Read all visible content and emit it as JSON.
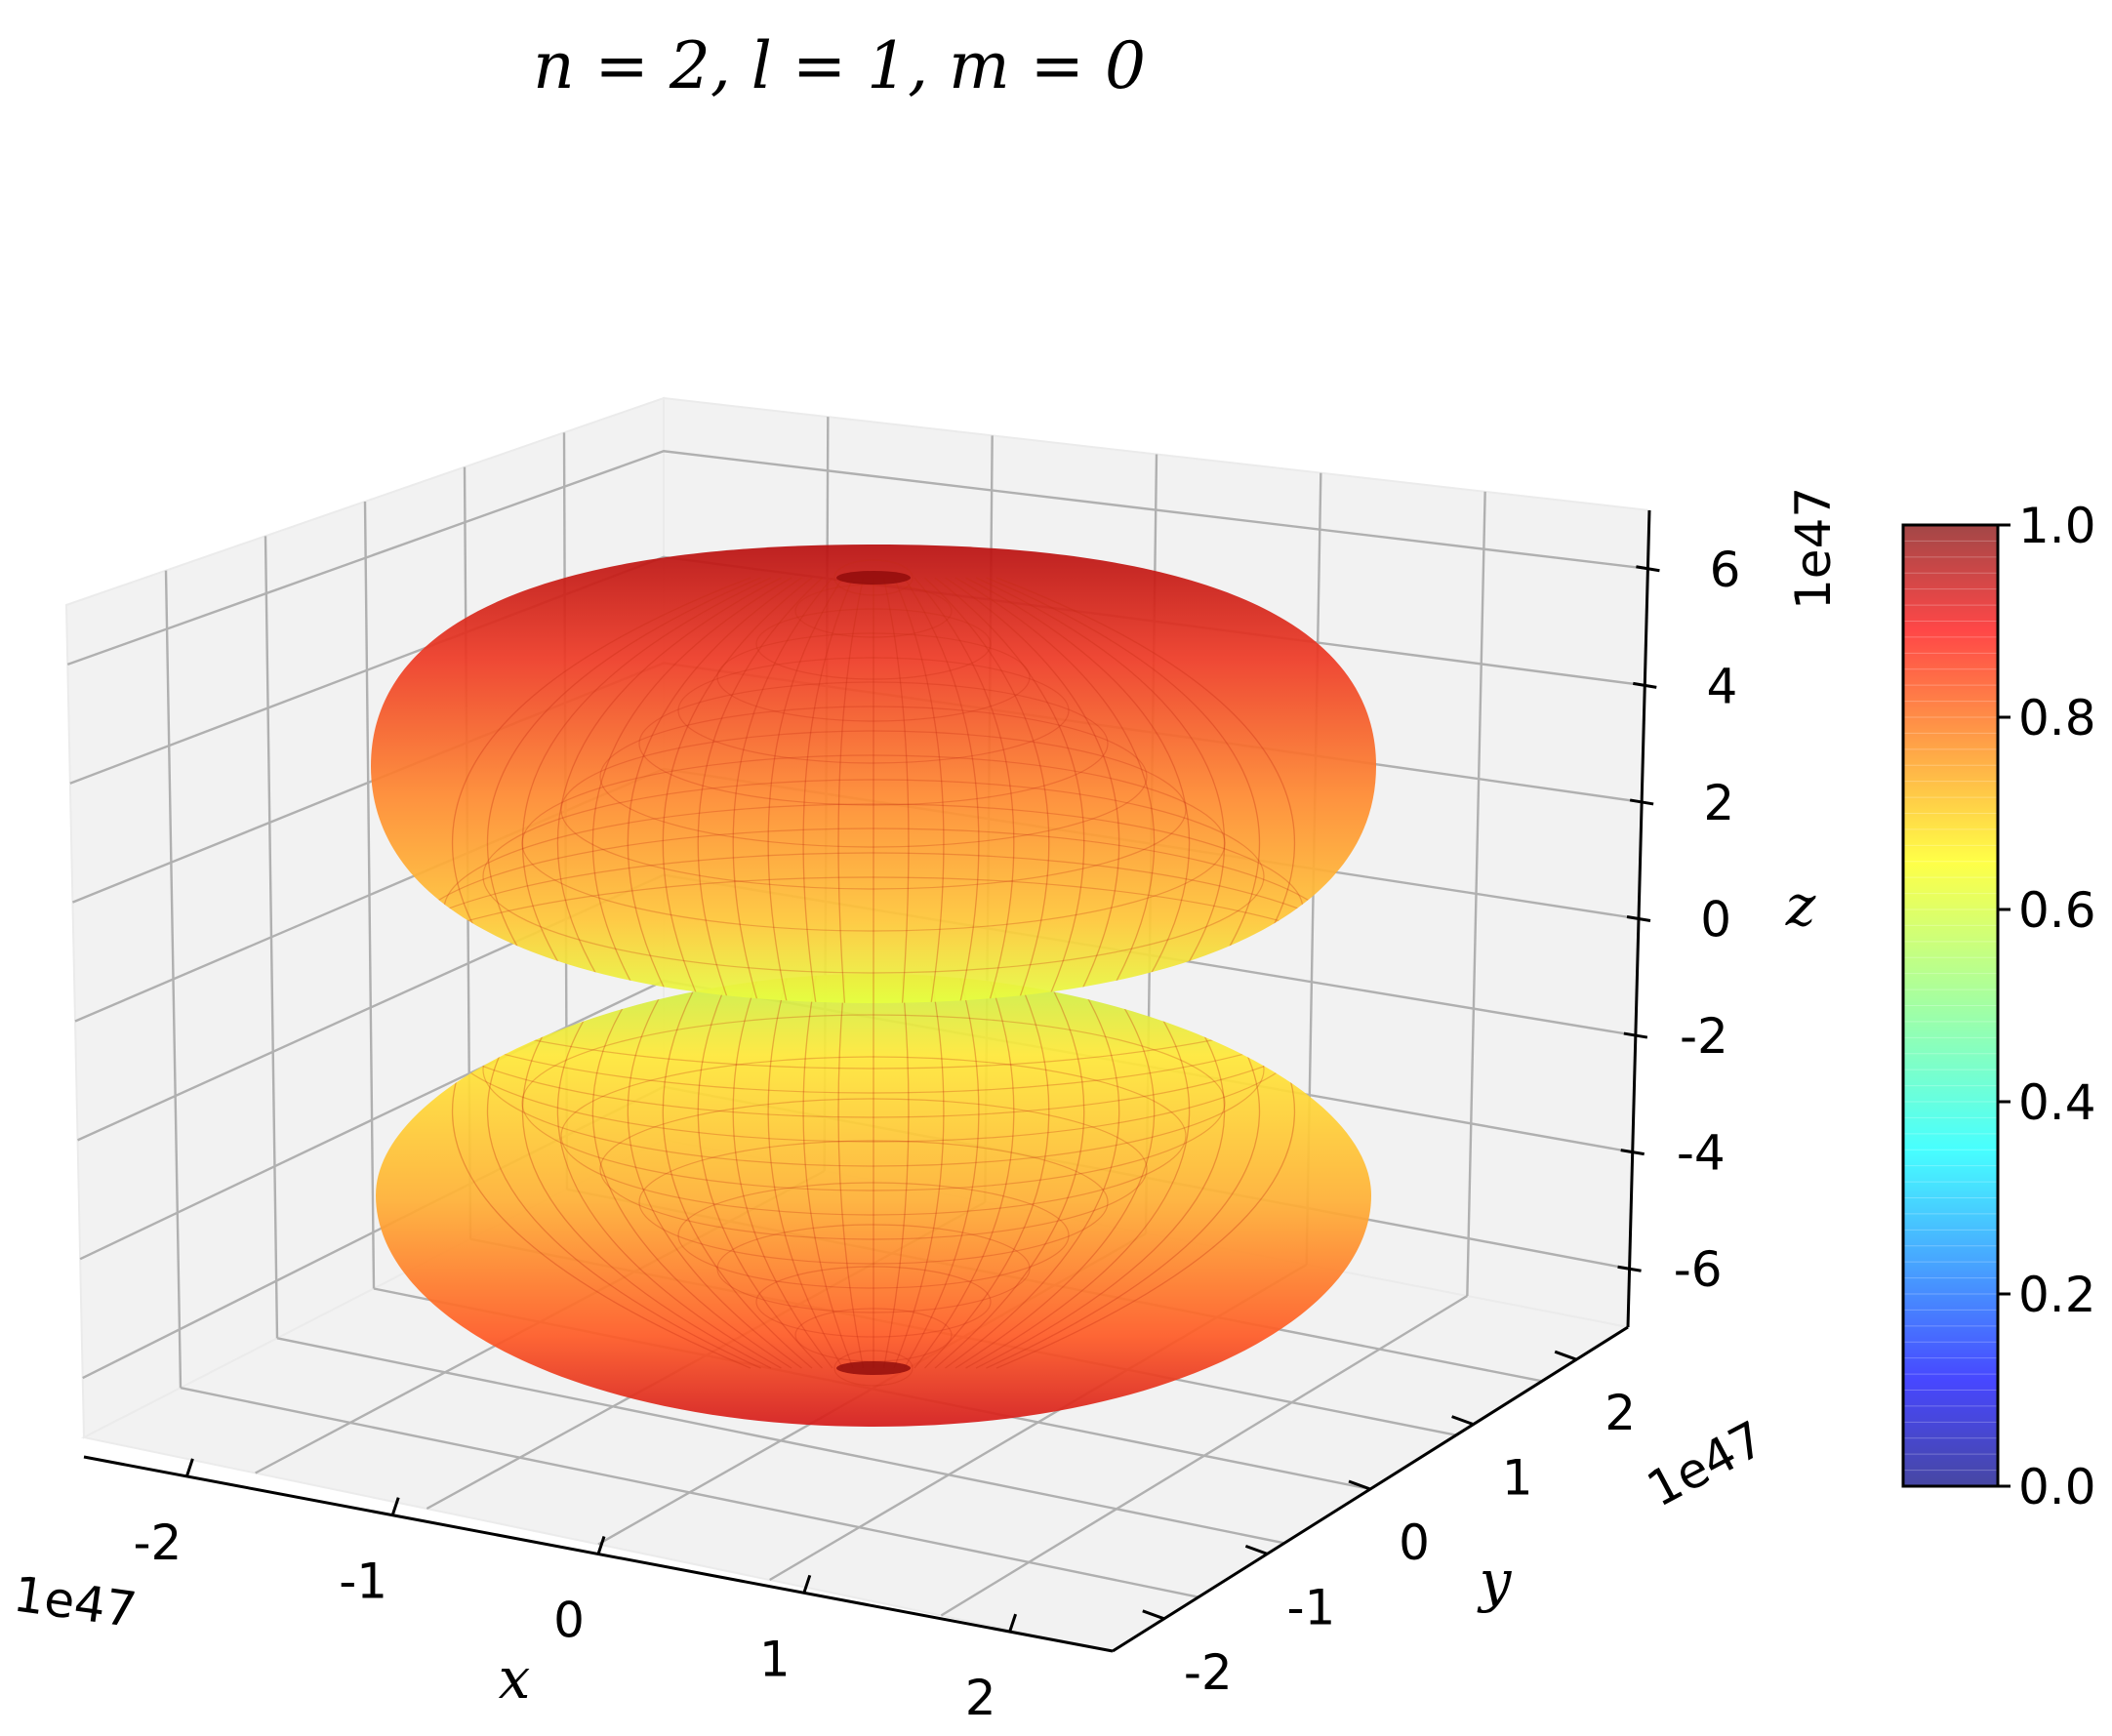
{
  "chart_data": {
    "type": "surface3d",
    "title": "n = 2, l = 1, m = 0",
    "xlabel": "x",
    "ylabel": "y",
    "zlabel": "z",
    "x_offset_label": "1e47",
    "y_offset_label": "1e47",
    "z_offset_label": "1e47",
    "x_ticks": [
      "-2",
      "-1",
      "0",
      "1",
      "2"
    ],
    "y_ticks": [
      "-2",
      "-1",
      "0",
      "1",
      "2"
    ],
    "z_ticks": [
      "6",
      "4",
      "2",
      "0",
      "-2",
      "-4",
      "-6"
    ],
    "x_range": [
      -2.5,
      2.5
    ],
    "y_range": [
      -2.5,
      2.5
    ],
    "z_range": [
      -7,
      7
    ],
    "surface": "two lobes symmetric about z = 0 (p orbital, m = 0), colored by normalized magnitude",
    "colormap": "jet",
    "alpha": 0.7,
    "colorbar": {
      "ticks": [
        "1.0",
        "0.8",
        "0.6",
        "0.4",
        "0.2",
        "0.0"
      ],
      "range": [
        0,
        1
      ]
    }
  }
}
